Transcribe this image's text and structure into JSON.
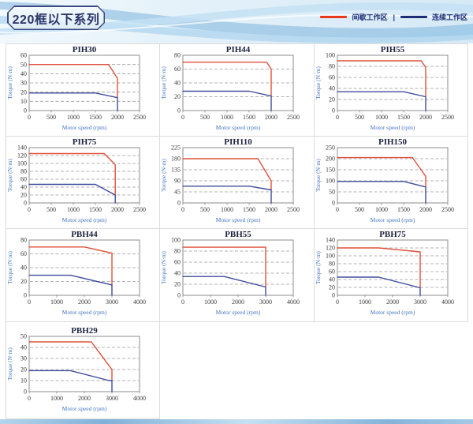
{
  "page": {
    "title": "220框以下系列",
    "legend": {
      "intermittent_label": "间歇工作区",
      "separator": "|",
      "continuous_label": "连续工作区",
      "intermittent_color": "#e8391d",
      "continuous_color": "#1f2f77"
    }
  },
  "chart_defaults": {
    "xlabel": "Motor speed (rpm)",
    "ylabel": "Torque (N·m)",
    "grid": "dashed-horizontal",
    "legend_position": "page-top-right"
  },
  "chart_data": [
    {
      "type": "line",
      "title": "PIH30",
      "xlim": [
        0,
        2500
      ],
      "xstep": 500,
      "ylim": [
        0,
        60
      ],
      "ystep": 10,
      "series": [
        {
          "key": "intermittent",
          "name": "间歇工作区",
          "color": "#e0503a",
          "points": [
            [
              0,
              50
            ],
            [
              1800,
              50
            ],
            [
              2000,
              35
            ],
            [
              2000,
              14
            ]
          ]
        },
        {
          "key": "continuous",
          "name": "连续工作区",
          "color": "#3f4c9c",
          "points": [
            [
              0,
              19
            ],
            [
              1500,
              19
            ],
            [
              2000,
              14
            ],
            [
              2000,
              0
            ]
          ]
        }
      ]
    },
    {
      "type": "line",
      "title": "PIH44",
      "xlim": [
        0,
        2500
      ],
      "xstep": 500,
      "ylim": [
        0,
        80
      ],
      "ystep": 20,
      "series": [
        {
          "key": "intermittent",
          "name": "间歇工作区",
          "color": "#e0503a",
          "points": [
            [
              0,
              70
            ],
            [
              1900,
              70
            ],
            [
              2000,
              60
            ],
            [
              2000,
              21
            ]
          ]
        },
        {
          "key": "continuous",
          "name": "连续工作区",
          "color": "#3f4c9c",
          "points": [
            [
              0,
              28
            ],
            [
              1500,
              28
            ],
            [
              2000,
              21
            ],
            [
              2000,
              0
            ]
          ]
        }
      ]
    },
    {
      "type": "line",
      "title": "PIH55",
      "xlim": [
        0,
        2500
      ],
      "xstep": 500,
      "ylim": [
        0,
        100
      ],
      "ystep": 20,
      "series": [
        {
          "key": "intermittent",
          "name": "间歇工作区",
          "color": "#e0503a",
          "points": [
            [
              0,
              90
            ],
            [
              1900,
              90
            ],
            [
              2000,
              78
            ],
            [
              2000,
              25
            ]
          ]
        },
        {
          "key": "continuous",
          "name": "连续工作区",
          "color": "#3f4c9c",
          "points": [
            [
              0,
              34
            ],
            [
              1500,
              34
            ],
            [
              2000,
              25
            ],
            [
              2000,
              0
            ]
          ]
        }
      ]
    },
    {
      "type": "line",
      "title": "PIH75",
      "xlim": [
        0,
        2500
      ],
      "xstep": 500,
      "ylim": [
        0,
        140
      ],
      "ystep": 20,
      "series": [
        {
          "key": "intermittent",
          "name": "间歇工作区",
          "color": "#e0503a",
          "points": [
            [
              0,
              125
            ],
            [
              1700,
              125
            ],
            [
              1950,
              97
            ],
            [
              1950,
              20
            ]
          ]
        },
        {
          "key": "continuous",
          "name": "连续工作区",
          "color": "#3f4c9c",
          "points": [
            [
              0,
              47
            ],
            [
              1500,
              47
            ],
            [
              1950,
              20
            ],
            [
              1950,
              0
            ]
          ]
        }
      ]
    },
    {
      "type": "line",
      "title": "PIH110",
      "xlim": [
        0,
        2500
      ],
      "xstep": 500,
      "ylim": [
        0,
        225
      ],
      "ystep": 45,
      "series": [
        {
          "key": "intermittent",
          "name": "间歇工作区",
          "color": "#e0503a",
          "points": [
            [
              0,
              180
            ],
            [
              1700,
              180
            ],
            [
              2000,
              90
            ],
            [
              2000,
              53
            ]
          ]
        },
        {
          "key": "continuous",
          "name": "连续工作区",
          "color": "#3f4c9c",
          "points": [
            [
              0,
              68
            ],
            [
              1500,
              68
            ],
            [
              2000,
              53
            ],
            [
              2000,
              0
            ]
          ]
        }
      ]
    },
    {
      "type": "line",
      "title": "PIH150",
      "xlim": [
        0,
        2500
      ],
      "xstep": 500,
      "ylim": [
        0,
        250
      ],
      "ystep": 50,
      "series": [
        {
          "key": "intermittent",
          "name": "间歇工作区",
          "color": "#e0503a",
          "points": [
            [
              0,
              205
            ],
            [
              1700,
              205
            ],
            [
              2000,
              120
            ],
            [
              2000,
              72
            ]
          ]
        },
        {
          "key": "continuous",
          "name": "连续工作区",
          "color": "#3f4c9c",
          "points": [
            [
              0,
              97
            ],
            [
              1500,
              97
            ],
            [
              2000,
              72
            ],
            [
              2000,
              0
            ]
          ]
        }
      ]
    },
    {
      "type": "line",
      "title": "PBH44",
      "xlim": [
        0,
        4000
      ],
      "xstep": 1000,
      "ylim": [
        0,
        80
      ],
      "ystep": 20,
      "series": [
        {
          "key": "intermittent",
          "name": "间歇工作区",
          "color": "#e0503a",
          "points": [
            [
              0,
              70
            ],
            [
              2000,
              70
            ],
            [
              3000,
              61
            ],
            [
              3000,
              15
            ]
          ]
        },
        {
          "key": "continuous",
          "name": "连续工作区",
          "color": "#3f4c9c",
          "points": [
            [
              0,
              29
            ],
            [
              1500,
              29
            ],
            [
              3000,
              15
            ],
            [
              3000,
              0
            ]
          ]
        }
      ]
    },
    {
      "type": "line",
      "title": "PBH55",
      "xlim": [
        0,
        4000
      ],
      "xstep": 1000,
      "ylim": [
        0,
        100
      ],
      "ystep": 20,
      "series": [
        {
          "key": "intermittent",
          "name": "间歇工作区",
          "color": "#e0503a",
          "points": [
            [
              0,
              87
            ],
            [
              3000,
              87
            ],
            [
              3000,
              15
            ]
          ]
        },
        {
          "key": "continuous",
          "name": "连续工作区",
          "color": "#3f4c9c",
          "points": [
            [
              0,
              34
            ],
            [
              1500,
              34
            ],
            [
              3000,
              15
            ],
            [
              3000,
              0
            ]
          ]
        }
      ]
    },
    {
      "type": "line",
      "title": "PBH75",
      "xlim": [
        0,
        4000
      ],
      "xstep": 1000,
      "ylim": [
        0,
        140
      ],
      "ystep": 20,
      "series": [
        {
          "key": "intermittent",
          "name": "间歇工作区",
          "color": "#e0503a",
          "points": [
            [
              0,
              120
            ],
            [
              1500,
              120
            ],
            [
              3000,
              110
            ],
            [
              3000,
              19
            ]
          ]
        },
        {
          "key": "continuous",
          "name": "连续工作区",
          "color": "#3f4c9c",
          "points": [
            [
              0,
              46
            ],
            [
              1500,
              46
            ],
            [
              3000,
              19
            ],
            [
              3000,
              0
            ]
          ]
        }
      ]
    },
    {
      "type": "line",
      "title": "PBH29",
      "xlim": [
        0,
        4000
      ],
      "xstep": 1000,
      "ylim": [
        0,
        50
      ],
      "ystep": 10,
      "series": [
        {
          "key": "intermittent",
          "name": "间歇工作区",
          "color": "#e0503a",
          "points": [
            [
              0,
              45
            ],
            [
              2250,
              45
            ],
            [
              3000,
              20
            ],
            [
              3000,
              10
            ]
          ]
        },
        {
          "key": "continuous",
          "name": "连续工作区",
          "color": "#3f4c9c",
          "points": [
            [
              0,
              19
            ],
            [
              1500,
              19
            ],
            [
              2900,
              10
            ],
            [
              3000,
              10
            ],
            [
              3000,
              0
            ]
          ]
        }
      ]
    }
  ]
}
